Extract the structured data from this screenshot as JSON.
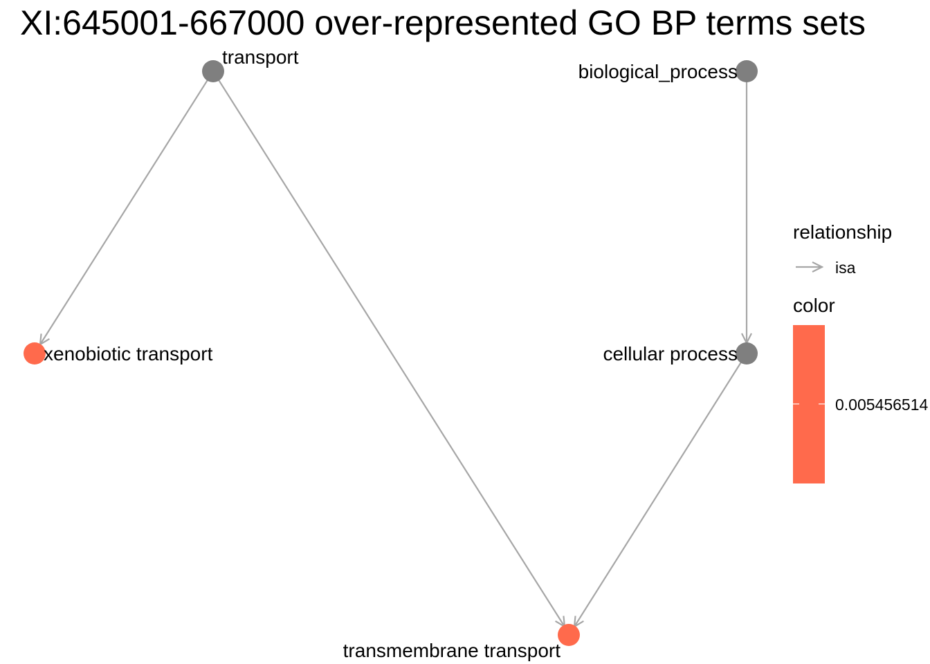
{
  "title": "XI:645001-667000 over-represented GO BP terms sets",
  "colors": {
    "significant_node": "#ff6a4c",
    "other_node": "#7f7f7f",
    "edge": "#a6a6a6"
  },
  "nodes": [
    {
      "id": "transport",
      "label": "transport",
      "colored": false
    },
    {
      "id": "biological_process",
      "label": "biological_process",
      "colored": false
    },
    {
      "id": "xenobiotic_transport",
      "label": "xenobiotic transport",
      "colored": true
    },
    {
      "id": "cellular_process",
      "label": "cellular process",
      "colored": false
    },
    {
      "id": "transmembrane_transport",
      "label": "transmembrane transport",
      "colored": true
    }
  ],
  "edges": [
    {
      "from": "transport",
      "to": "xenobiotic_transport",
      "relationship": "isa"
    },
    {
      "from": "transport",
      "to": "transmembrane_transport",
      "relationship": "isa"
    },
    {
      "from": "biological_process",
      "to": "cellular_process",
      "relationship": "isa"
    },
    {
      "from": "cellular_process",
      "to": "transmembrane_transport",
      "relationship": "isa"
    }
  ],
  "legend": {
    "relationship_title": "relationship",
    "relationship_item": "isa",
    "color_title": "color",
    "color_value": "0.005456514"
  }
}
